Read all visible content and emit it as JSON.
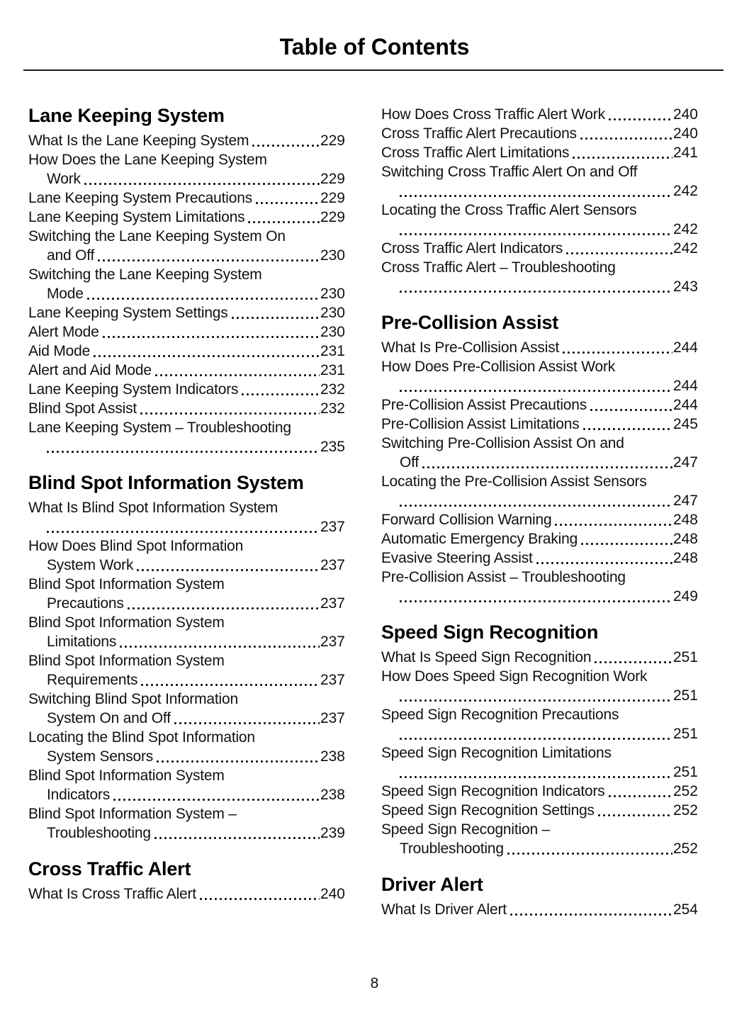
{
  "title": "Table of Contents",
  "footer": {
    "page_number": "8"
  },
  "columns": [
    {
      "sections": [
        {
          "heading": "Lane Keeping System",
          "entries": [
            {
              "pre": "",
              "tail": "What Is the Lane Keeping System",
              "page": "229"
            },
            {
              "pre": "How Does the Lane Keeping System",
              "tail": "Work",
              "page": "229"
            },
            {
              "pre": "",
              "tail": "Lane Keeping System Precautions",
              "page": "229"
            },
            {
              "pre": "",
              "tail": "Lane Keeping System Limitations",
              "page": "229"
            },
            {
              "pre": "Switching the Lane Keeping System On",
              "tail": "and Off",
              "page": "230"
            },
            {
              "pre": "Switching the Lane Keeping System",
              "tail": "Mode",
              "page": "230"
            },
            {
              "pre": "",
              "tail": "Lane Keeping System Settings",
              "page": "230"
            },
            {
              "pre": "",
              "tail": "Alert Mode",
              "page": "230"
            },
            {
              "pre": "",
              "tail": "Aid Mode",
              "page": "231"
            },
            {
              "pre": "",
              "tail": "Alert and Aid Mode",
              "page": "231"
            },
            {
              "pre": "",
              "tail": "Lane Keeping System Indicators",
              "page": "232"
            },
            {
              "pre": "",
              "tail": "Blind Spot Assist",
              "page": "232"
            },
            {
              "pre": "Lane Keeping System – Troubleshooting",
              "tail": "",
              "page": "235"
            }
          ]
        },
        {
          "heading": "Blind Spot Information System",
          "entries": [
            {
              "pre": "What Is Blind Spot Information System",
              "tail": "",
              "page": "237"
            },
            {
              "pre": "How Does Blind Spot Information",
              "tail": "System Work",
              "page": "237"
            },
            {
              "pre": "Blind Spot Information System",
              "tail": "Precautions",
              "page": "237"
            },
            {
              "pre": "Blind Spot Information System",
              "tail": "Limitations",
              "page": "237"
            },
            {
              "pre": "Blind Spot Information System",
              "tail": "Requirements",
              "page": "237"
            },
            {
              "pre": "Switching Blind Spot Information",
              "tail": "System On and Off",
              "page": "237"
            },
            {
              "pre": "Locating the Blind Spot Information",
              "tail": "System Sensors",
              "page": "238"
            },
            {
              "pre": "Blind Spot Information System",
              "tail": "Indicators",
              "page": "238"
            },
            {
              "pre": "Blind Spot Information System –",
              "tail": "Troubleshooting",
              "page": "239"
            }
          ]
        },
        {
          "heading": "Cross Traffic Alert",
          "entries": [
            {
              "pre": "",
              "tail": "What Is Cross Traffic Alert",
              "page": "240"
            }
          ]
        }
      ]
    },
    {
      "sections": [
        {
          "heading": "",
          "entries": [
            {
              "pre": "",
              "tail": "How Does Cross Traffic Alert Work",
              "page": "240"
            },
            {
              "pre": "",
              "tail": "Cross Traffic Alert Precautions",
              "page": "240"
            },
            {
              "pre": "",
              "tail": "Cross Traffic Alert Limitations",
              "page": "241"
            },
            {
              "pre": "Switching Cross Traffic Alert On and Off",
              "tail": "",
              "page": "242"
            },
            {
              "pre": "Locating the Cross Traffic Alert Sensors",
              "tail": "",
              "page": "242"
            },
            {
              "pre": "",
              "tail": "Cross Traffic Alert Indicators",
              "page": "242"
            },
            {
              "pre": "Cross Traffic Alert – Troubleshooting",
              "tail": "",
              "page": "243"
            }
          ]
        },
        {
          "heading": "Pre-Collision Assist",
          "entries": [
            {
              "pre": "",
              "tail": "What Is Pre-Collision Assist",
              "page": "244"
            },
            {
              "pre": "How Does Pre-Collision Assist Work",
              "tail": "",
              "page": "244"
            },
            {
              "pre": "",
              "tail": "Pre-Collision Assist Precautions",
              "page": "244"
            },
            {
              "pre": "",
              "tail": "Pre-Collision Assist Limitations",
              "page": "245"
            },
            {
              "pre": "Switching Pre-Collision Assist On and",
              "tail": "Off",
              "page": "247"
            },
            {
              "pre": "Locating the Pre-Collision Assist Sensors",
              "tail": "",
              "page": "247"
            },
            {
              "pre": "",
              "tail": "Forward Collision Warning",
              "page": "248"
            },
            {
              "pre": "",
              "tail": "Automatic Emergency Braking",
              "page": "248"
            },
            {
              "pre": "",
              "tail": "Evasive Steering Assist",
              "page": "248"
            },
            {
              "pre": "Pre-Collision Assist – Troubleshooting",
              "tail": "",
              "page": "249"
            }
          ]
        },
        {
          "heading": "Speed Sign Recognition",
          "entries": [
            {
              "pre": "",
              "tail": "What Is Speed Sign Recognition",
              "page": "251"
            },
            {
              "pre": "How Does Speed Sign Recognition Work",
              "tail": "",
              "page": "251"
            },
            {
              "pre": "Speed Sign Recognition Precautions",
              "tail": "",
              "page": "251"
            },
            {
              "pre": "Speed Sign Recognition Limitations",
              "tail": "",
              "page": "251"
            },
            {
              "pre": "",
              "tail": "Speed Sign Recognition Indicators",
              "page": "252"
            },
            {
              "pre": "",
              "tail": "Speed Sign Recognition Settings",
              "page": "252"
            },
            {
              "pre": "Speed Sign Recognition –",
              "tail": "Troubleshooting",
              "page": "252"
            }
          ]
        },
        {
          "heading": "Driver Alert",
          "entries": [
            {
              "pre": "",
              "tail": "What Is Driver Alert",
              "page": "254"
            }
          ]
        }
      ]
    }
  ]
}
